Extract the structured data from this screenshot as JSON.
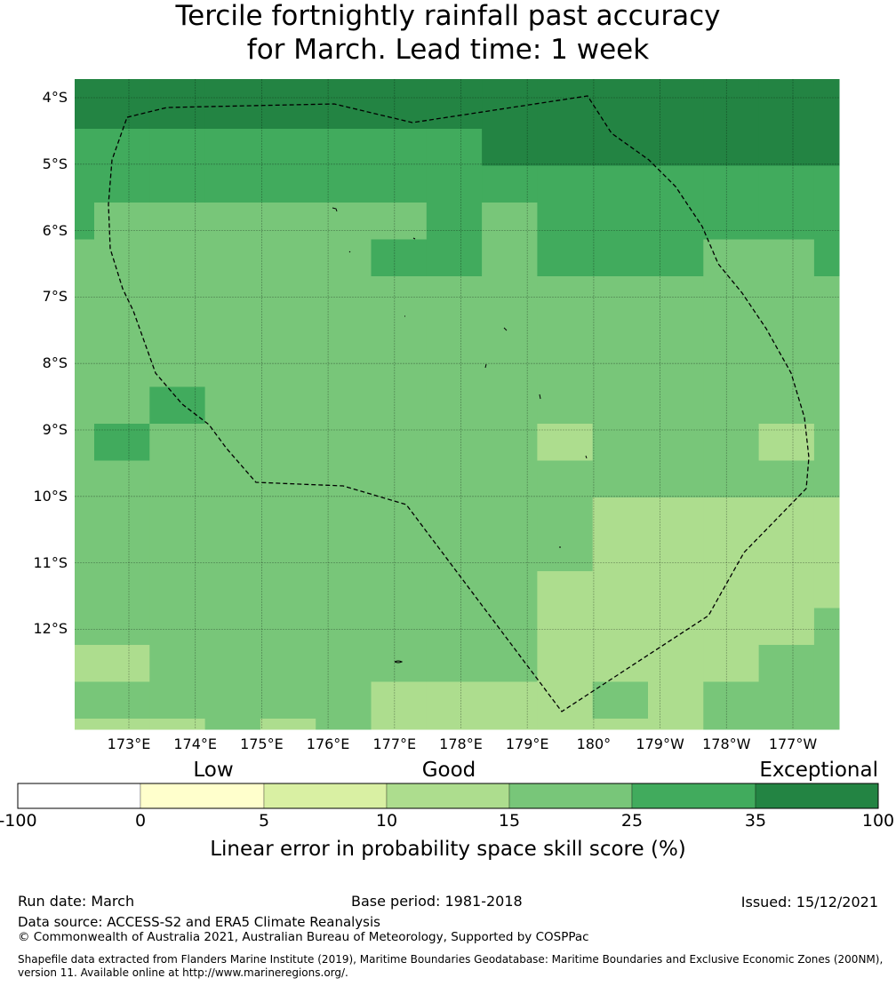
{
  "title_line1": "Tercile fortnightly rainfall past accuracy",
  "title_line2": "for March. Lead time: 1 week",
  "map": {
    "lat_labels": [
      "4°S",
      "5°S",
      "6°S",
      "7°S",
      "8°S",
      "9°S",
      "10°S",
      "11°S",
      "12°S"
    ],
    "lon_labels": [
      "173°E",
      "174°E",
      "175°E",
      "176°E",
      "177°E",
      "178°E",
      "179°E",
      "180°",
      "179°W",
      "178°W",
      "177°W"
    ],
    "colors": [
      "#ffffff",
      "#ffffcc",
      "#d9f0a3",
      "#addd8e",
      "#78c679",
      "#41ab5d",
      "#238443"
    ],
    "cells": [
      [
        6,
        6,
        6,
        6,
        6,
        6,
        6,
        6,
        6,
        6,
        6,
        6,
        6,
        6,
        6
      ],
      [
        5,
        5,
        5,
        5,
        5,
        5,
        5,
        5,
        6,
        6,
        6,
        6,
        6,
        6,
        6
      ],
      [
        5,
        5,
        5,
        5,
        5,
        5,
        5,
        5,
        5,
        5,
        5,
        5,
        5,
        5,
        5
      ],
      [
        5,
        4,
        4,
        4,
        4,
        4,
        4,
        5,
        4,
        5,
        5,
        5,
        5,
        5,
        5
      ],
      [
        4,
        4,
        4,
        4,
        4,
        4,
        5,
        5,
        4,
        5,
        5,
        5,
        4,
        4,
        5
      ],
      [
        4,
        4,
        4,
        4,
        4,
        4,
        4,
        4,
        4,
        4,
        4,
        4,
        4,
        4,
        4
      ],
      [
        4,
        4,
        4,
        4,
        4,
        4,
        4,
        4,
        4,
        4,
        4,
        4,
        4,
        4,
        4
      ],
      [
        4,
        4,
        4,
        4,
        4,
        4,
        4,
        4,
        4,
        4,
        4,
        4,
        4,
        4,
        4
      ],
      [
        4,
        4,
        5,
        4,
        4,
        4,
        4,
        4,
        4,
        4,
        4,
        4,
        4,
        4,
        4
      ],
      [
        4,
        5,
        4,
        4,
        4,
        4,
        4,
        4,
        4,
        3,
        4,
        4,
        4,
        3,
        4
      ],
      [
        4,
        4,
        4,
        4,
        4,
        4,
        4,
        4,
        4,
        4,
        4,
        4,
        4,
        4,
        4
      ],
      [
        4,
        4,
        4,
        4,
        4,
        4,
        4,
        4,
        4,
        4,
        3,
        3,
        3,
        3,
        3
      ],
      [
        4,
        4,
        4,
        4,
        4,
        4,
        4,
        4,
        4,
        4,
        3,
        3,
        3,
        3,
        3
      ],
      [
        4,
        4,
        4,
        4,
        4,
        4,
        4,
        4,
        4,
        3,
        3,
        3,
        3,
        3,
        3
      ],
      [
        4,
        4,
        4,
        4,
        4,
        4,
        4,
        4,
        4,
        3,
        3,
        3,
        3,
        3,
        4
      ],
      [
        3,
        3,
        4,
        4,
        4,
        4,
        4,
        4,
        4,
        3,
        3,
        3,
        3,
        4,
        4
      ],
      [
        4,
        4,
        4,
        4,
        4,
        4,
        3,
        3,
        3,
        3,
        4,
        3,
        4,
        4,
        4
      ],
      [
        3,
        3,
        3,
        4,
        3,
        4,
        3,
        3,
        3,
        3,
        3,
        3,
        4,
        4,
        4
      ]
    ]
  },
  "colorbar": {
    "categories": [
      "Low",
      "Good",
      "Exceptional"
    ],
    "ticks": [
      "-100",
      "0",
      "5",
      "10",
      "15",
      "25",
      "35",
      "100"
    ],
    "colors": [
      "#ffffff",
      "#ffffcc",
      "#d9f0a3",
      "#addd8e",
      "#78c679",
      "#41ab5d",
      "#238443"
    ],
    "label": "Linear error in probability space skill score (%)"
  },
  "footer": {
    "run_date": "Run date: March",
    "base_period": "Base period: 1981-2018",
    "issued": "Issued: 15/12/2021",
    "data_source": "Data source: ACCESS-S2 and ERA5 Climate Reanalysis",
    "copyright": "© Commonwealth of Australia 2021, Australian Bureau of Meteorology, Supported by COSPPac",
    "shapefile_line1": "Shapefile data extracted from Flanders Marine Institute (2019), Maritime Boundaries Geodatabase: Maritime Boundaries and Exclusive Economic Zones (200NM),",
    "shapefile_line2": "version 11. Available online at http://www.marineregions.org/."
  }
}
